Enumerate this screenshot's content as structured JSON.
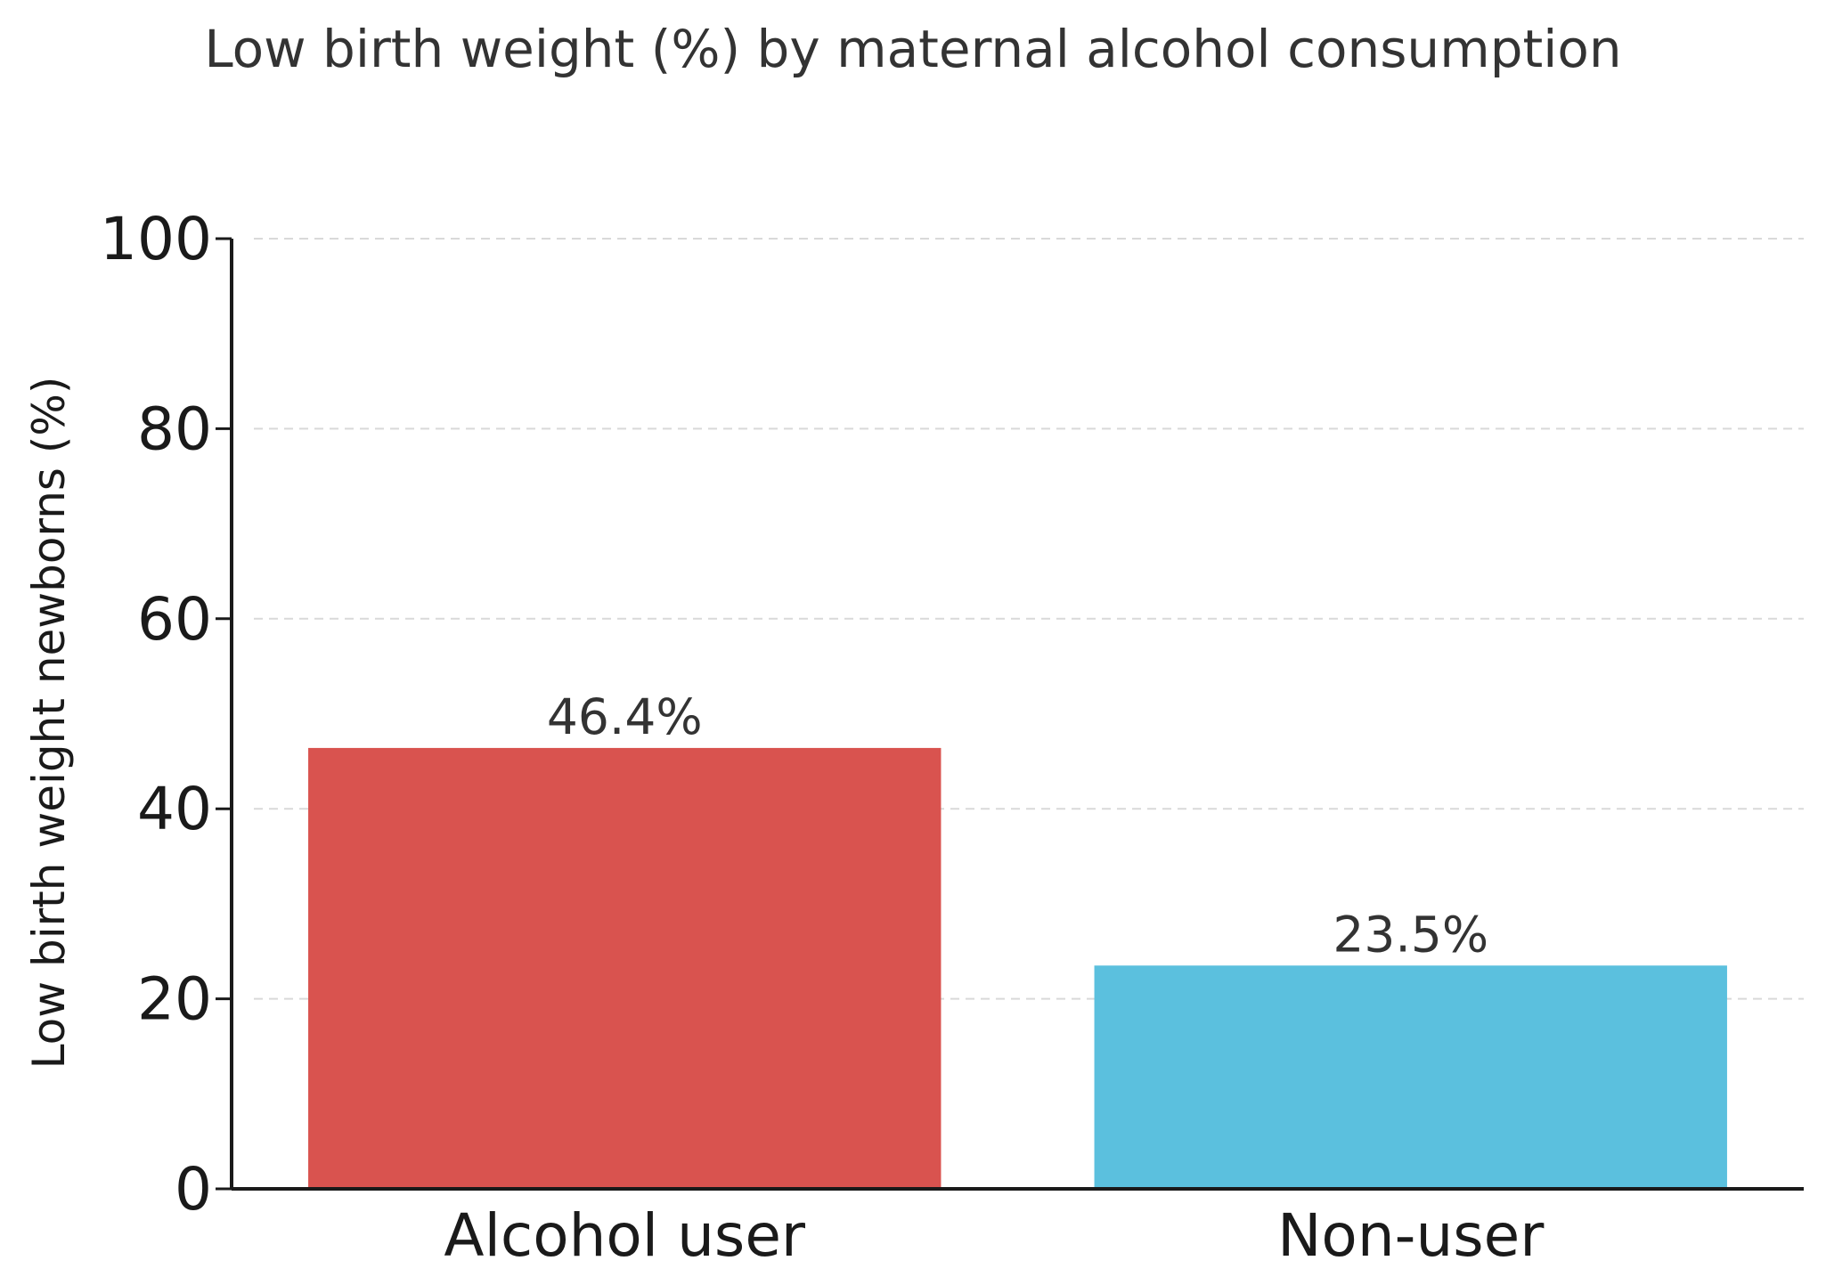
{
  "chart_data": {
    "type": "bar",
    "title": "Low birth weight (%) by maternal alcohol consumption",
    "xlabel": "",
    "ylabel": "Low birth weight newborns (%)",
    "ylim": [
      0,
      100
    ],
    "yticks": [
      0,
      20,
      40,
      60,
      80,
      100
    ],
    "yticks_labels": [
      "0",
      "20",
      "40",
      "60",
      "80",
      "100"
    ],
    "grid": true,
    "categories": [
      "Alcohol user",
      "Non-user"
    ],
    "values": [
      46.4,
      23.5
    ],
    "data_labels": [
      "46.4%",
      "23.5%"
    ],
    "colors": [
      "#d9534f",
      "#5bc0de"
    ]
  }
}
